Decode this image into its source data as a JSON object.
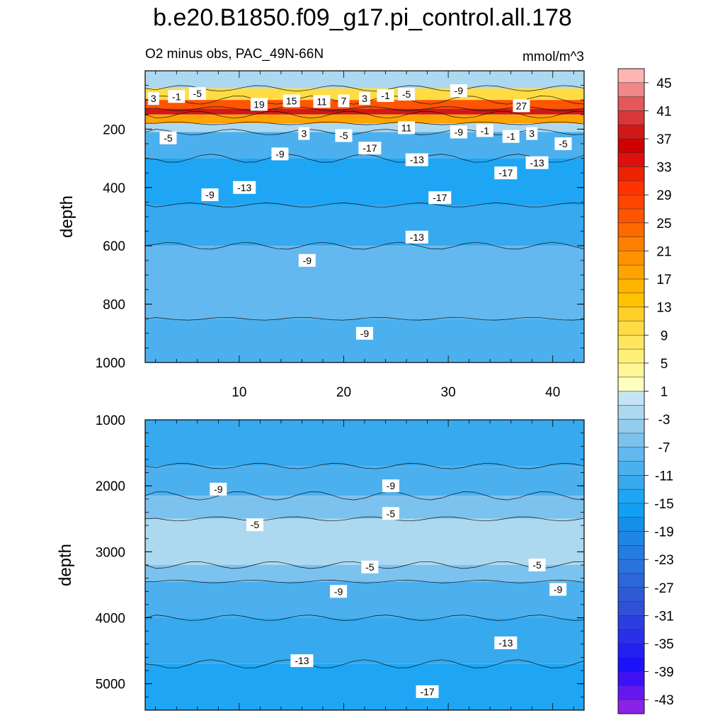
{
  "chart_data": {
    "type": "contour",
    "title": "b.e20.B1850.f09_g17.pi_control.all.178",
    "subtitle_left": "O2 minus obs, PAC_49N-66N",
    "units": "mmol/m^3",
    "x_ticks": [
      "10",
      "20",
      "30",
      "40"
    ],
    "x_range": [
      1,
      43
    ],
    "panels": [
      {
        "name": "upper",
        "ylabel": "depth",
        "ylim": [
          0,
          1000
        ],
        "y_ticks": [
          "200",
          "400",
          "600",
          "800",
          "1000"
        ],
        "y_tick_values": [
          200,
          400,
          600,
          800,
          1000
        ],
        "bands": [
          {
            "depth_top": 0,
            "depth_bottom": 60,
            "value": -3
          },
          {
            "depth_top": 60,
            "depth_bottom": 100,
            "value": 9
          },
          {
            "depth_top": 100,
            "depth_bottom": 130,
            "value": 25
          },
          {
            "depth_top": 130,
            "depth_bottom": 150,
            "value": 37
          },
          {
            "depth_top": 150,
            "depth_bottom": 180,
            "value": 17
          },
          {
            "depth_top": 180,
            "depth_bottom": 210,
            "value": -3
          },
          {
            "depth_top": 210,
            "depth_bottom": 300,
            "value": -11
          },
          {
            "depth_top": 300,
            "depth_bottom": 460,
            "value": -15
          },
          {
            "depth_top": 460,
            "depth_bottom": 600,
            "value": -13
          },
          {
            "depth_top": 600,
            "depth_bottom": 850,
            "value": -9
          },
          {
            "depth_top": 850,
            "depth_bottom": 1000,
            "value": -11
          }
        ],
        "contour_labels": [
          {
            "text": "3",
            "x": 1.8,
            "depth": 95
          },
          {
            "text": "-1",
            "x": 4.0,
            "depth": 88
          },
          {
            "text": "-5",
            "x": 6.0,
            "depth": 78
          },
          {
            "text": "19",
            "x": 11.9,
            "depth": 115
          },
          {
            "text": "15",
            "x": 15.0,
            "depth": 103
          },
          {
            "text": "11",
            "x": 17.9,
            "depth": 105
          },
          {
            "text": "7",
            "x": 20.0,
            "depth": 103
          },
          {
            "text": "3",
            "x": 22.0,
            "depth": 95
          },
          {
            "text": "-1",
            "x": 24.0,
            "depth": 85
          },
          {
            "text": "-5",
            "x": 26.0,
            "depth": 80
          },
          {
            "text": "-9",
            "x": 31.0,
            "depth": 68
          },
          {
            "text": "27",
            "x": 37.0,
            "depth": 120
          },
          {
            "text": "11",
            "x": 26.0,
            "depth": 195
          },
          {
            "text": "3",
            "x": 16.2,
            "depth": 215
          },
          {
            "text": "-5",
            "x": 20.0,
            "depth": 222
          },
          {
            "text": "-9",
            "x": 31.0,
            "depth": 210
          },
          {
            "text": "-1",
            "x": 33.5,
            "depth": 205
          },
          {
            "text": "-1",
            "x": 36.0,
            "depth": 225
          },
          {
            "text": "3",
            "x": 38.0,
            "depth": 215
          },
          {
            "text": "-5",
            "x": 41.0,
            "depth": 250
          },
          {
            "text": "-5",
            "x": 3.2,
            "depth": 230
          },
          {
            "text": "-9",
            "x": 13.9,
            "depth": 285
          },
          {
            "text": "-17",
            "x": 22.5,
            "depth": 265
          },
          {
            "text": "-13",
            "x": 27.0,
            "depth": 305
          },
          {
            "text": "-13",
            "x": 38.5,
            "depth": 315
          },
          {
            "text": "-17",
            "x": 35.5,
            "depth": 350
          },
          {
            "text": "-13",
            "x": 10.5,
            "depth": 400
          },
          {
            "text": "-9",
            "x": 7.2,
            "depth": 425
          },
          {
            "text": "-17",
            "x": 29.2,
            "depth": 435
          },
          {
            "text": "-13",
            "x": 27.0,
            "depth": 570
          },
          {
            "text": "-9",
            "x": 16.5,
            "depth": 650
          },
          {
            "text": "-9",
            "x": 22.0,
            "depth": 900
          }
        ]
      },
      {
        "name": "lower",
        "ylabel": "depth",
        "ylim": [
          1000,
          5400
        ],
        "y_ticks": [
          "1000",
          "2000",
          "3000",
          "4000",
          "5000"
        ],
        "y_tick_values": [
          1000,
          2000,
          3000,
          4000,
          5000
        ],
        "bands": [
          {
            "depth_top": 1000,
            "depth_bottom": 1700,
            "value": -13
          },
          {
            "depth_top": 1700,
            "depth_bottom": 2150,
            "value": -11
          },
          {
            "depth_top": 2150,
            "depth_bottom": 2500,
            "value": -7
          },
          {
            "depth_top": 2500,
            "depth_bottom": 3200,
            "value": -3
          },
          {
            "depth_top": 3200,
            "depth_bottom": 3450,
            "value": -7
          },
          {
            "depth_top": 3450,
            "depth_bottom": 4000,
            "value": -11
          },
          {
            "depth_top": 4000,
            "depth_bottom": 4700,
            "value": -13
          },
          {
            "depth_top": 4700,
            "depth_bottom": 5400,
            "value": -15
          }
        ],
        "contour_labels": [
          {
            "text": "-9",
            "x": 8.0,
            "depth": 2050
          },
          {
            "text": "-9",
            "x": 24.5,
            "depth": 2000
          },
          {
            "text": "-5",
            "x": 24.5,
            "depth": 2420
          },
          {
            "text": "-5",
            "x": 11.5,
            "depth": 2590
          },
          {
            "text": "-5",
            "x": 22.5,
            "depth": 3230
          },
          {
            "text": "-5",
            "x": 38.5,
            "depth": 3200
          },
          {
            "text": "-9",
            "x": 19.5,
            "depth": 3600
          },
          {
            "text": "-9",
            "x": 40.5,
            "depth": 3570
          },
          {
            "text": "-13",
            "x": 16.0,
            "depth": 4650
          },
          {
            "text": "-13",
            "x": 35.5,
            "depth": 4380
          },
          {
            "text": "-17",
            "x": 28.0,
            "depth": 5120
          }
        ]
      }
    ],
    "colorbar": {
      "levels": [
        45,
        43,
        41,
        39,
        37,
        35,
        33,
        31,
        29,
        27,
        25,
        23,
        21,
        19,
        17,
        15,
        13,
        11,
        9,
        7,
        5,
        3,
        1,
        -1,
        -3,
        -5,
        -7,
        -9,
        -11,
        -13,
        -15,
        -17,
        -19,
        -21,
        -23,
        -25,
        -27,
        -29,
        -31,
        -33,
        -35,
        -37,
        -39,
        -41,
        -43,
        -45
      ],
      "labeled_levels": [
        "45",
        "41",
        "37",
        "33",
        "29",
        "25",
        "21",
        "17",
        "13",
        "9",
        "5",
        "1",
        "-3",
        "-7",
        "-11",
        "-15",
        "-19",
        "-23",
        "-27",
        "-31",
        "-35",
        "-39",
        "-43"
      ],
      "colors": [
        "#ffb3b3",
        "#f08888",
        "#e45858",
        "#d83838",
        "#d01818",
        "#d00000",
        "#dd1010",
        "#ee2200",
        "#ff3300",
        "#ff4400",
        "#ff5500",
        "#ff6a00",
        "#ff8000",
        "#ff9200",
        "#ffa300",
        "#ffb400",
        "#ffc300",
        "#ffd02a",
        "#ffdc44",
        "#ffe65e",
        "#fff07a",
        "#fff798",
        "#ffffc0",
        "#c4e4f4",
        "#acd8f0",
        "#94ccee",
        "#7cc2ee",
        "#62b8ef",
        "#4cb0ef",
        "#36a9ef",
        "#1ea6f4",
        "#12a0f4",
        "#1490ea",
        "#1e86e4",
        "#247ce0",
        "#2a72dc",
        "#2d66d8",
        "#2f5ad6",
        "#3050d6",
        "#2c3ee0",
        "#2a30ea",
        "#2420f2",
        "#1c12f8",
        "#3c12f4",
        "#6418ee",
        "#8a22e8"
      ]
    }
  }
}
